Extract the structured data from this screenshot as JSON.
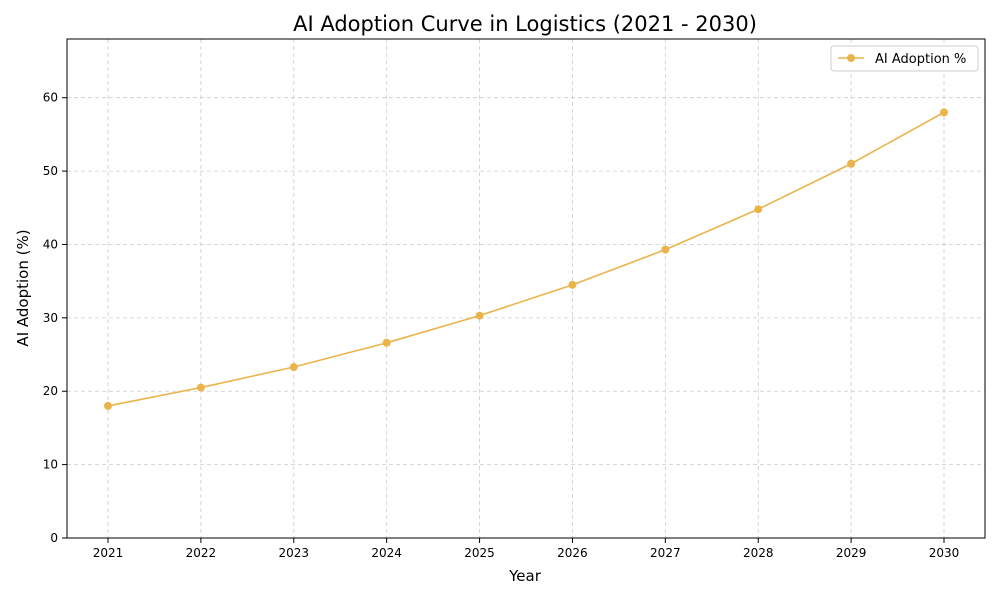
{
  "chart_data": {
    "type": "line",
    "title": "AI Adoption Curve in Logistics (2021 - 2030)",
    "xlabel": "Year",
    "ylabel": "AI Adoption (%)",
    "x": [
      "2021",
      "2022",
      "2023",
      "2024",
      "2025",
      "2026",
      "2027",
      "2028",
      "2029",
      "2030"
    ],
    "series": [
      {
        "name": "AI Adoption %",
        "values": [
          18.0,
          20.5,
          23.3,
          26.6,
          30.3,
          34.5,
          39.3,
          44.8,
          51.0,
          58.0
        ]
      }
    ],
    "ylim": [
      0,
      68
    ],
    "yticks": [
      "0",
      "10",
      "20",
      "30",
      "40",
      "50",
      "60"
    ],
    "grid": true,
    "legend_position": "top-right",
    "colors": {
      "line": "#ebb44b",
      "grid": "#cccccc",
      "axis": "#000000"
    }
  }
}
